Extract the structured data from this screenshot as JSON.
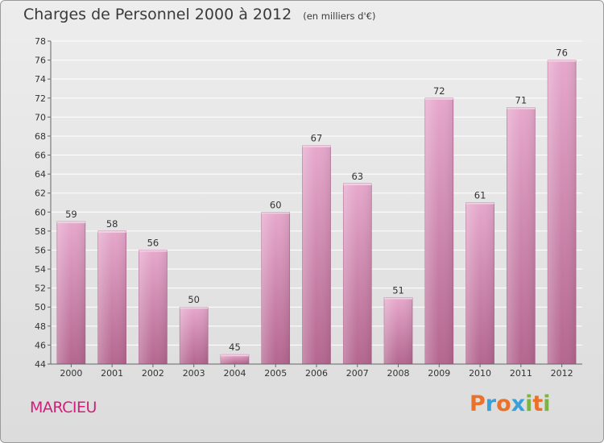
{
  "header": {
    "title": "Charges de Personnel 2000 à 2012",
    "subtitle": "(en milliers d'€)"
  },
  "footer": {
    "town": "MARCIEU",
    "logo": "Proxiti",
    "logo_colors": [
      "#e9712a",
      "#3aa0d8",
      "#e9712a",
      "#3aa0d8",
      "#7cb342",
      "#e9712a",
      "#7cb342"
    ]
  },
  "chart_data": {
    "type": "bar",
    "title": "Charges de Personnel 2000 à 2012",
    "subtitle": "(en milliers d'€)",
    "xlabel": "",
    "ylabel": "",
    "categories": [
      "2000",
      "2001",
      "2002",
      "2003",
      "2004",
      "2005",
      "2006",
      "2007",
      "2008",
      "2009",
      "2010",
      "2011",
      "2012"
    ],
    "values": [
      59,
      58,
      56,
      50,
      45,
      60,
      67,
      63,
      51,
      72,
      61,
      71,
      76
    ],
    "ylim": [
      44,
      78
    ],
    "ytick_step": 2,
    "grid": true,
    "legend": "none",
    "bar_color": "#c2729f",
    "bar_color_light": "#e4a7cb"
  }
}
